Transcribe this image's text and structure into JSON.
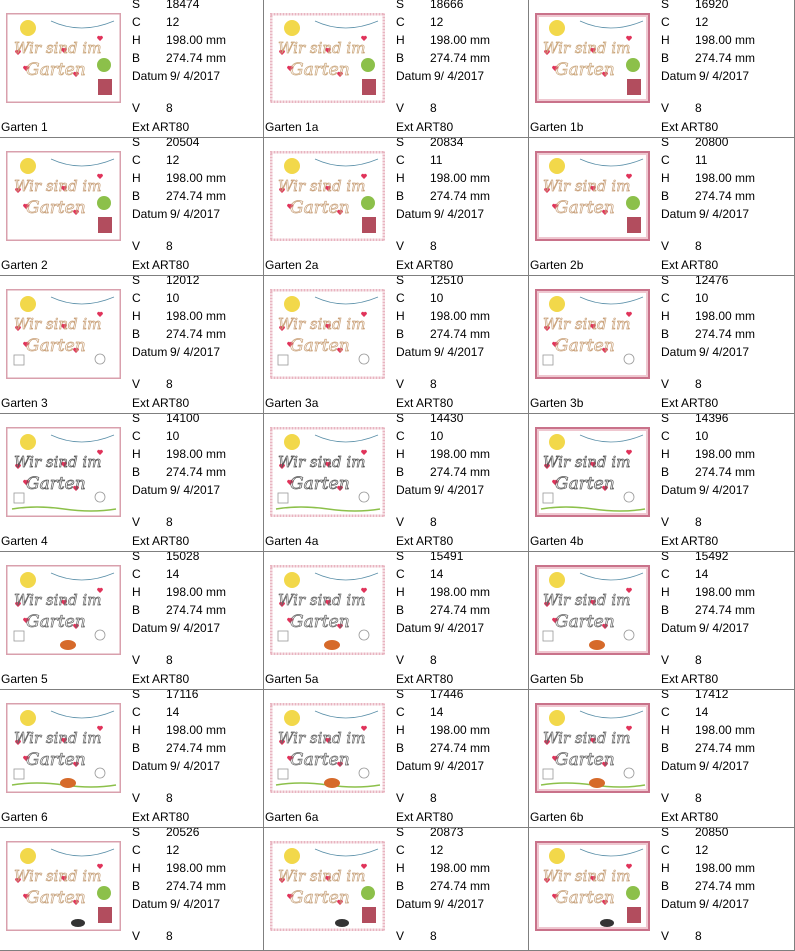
{
  "labels": {
    "s": "S",
    "c": "C",
    "h": "H",
    "b": "B",
    "datum": "Datum",
    "v": "V",
    "ext": "Ext"
  },
  "designs": [
    {
      "name": "Garten 1",
      "s": "18474",
      "c": "12",
      "h": "198.00 mm",
      "b": "274.74 mm",
      "date": "9/ 4/2017",
      "v": "8",
      "ext": "ART80",
      "variant": 1
    },
    {
      "name": "Garten 1a",
      "s": "18666",
      "c": "12",
      "h": "198.00 mm",
      "b": "274.74 mm",
      "date": "9/ 4/2017",
      "v": "8",
      "ext": "ART80",
      "variant": 1
    },
    {
      "name": "Garten 1b",
      "s": "16920",
      "c": "12",
      "h": "198.00 mm",
      "b": "274.74 mm",
      "date": "9/ 4/2017",
      "v": "8",
      "ext": "ART80",
      "variant": 1
    },
    {
      "name": "Garten 2",
      "s": "20504",
      "c": "12",
      "h": "198.00 mm",
      "b": "274.74 mm",
      "date": "9/ 4/2017",
      "v": "8",
      "ext": "ART80",
      "variant": 2
    },
    {
      "name": "Garten 2a",
      "s": "20834",
      "c": "11",
      "h": "198.00 mm",
      "b": "274.74 mm",
      "date": "9/ 4/2017",
      "v": "8",
      "ext": "ART80",
      "variant": 2
    },
    {
      "name": "Garten 2b",
      "s": "20800",
      "c": "11",
      "h": "198.00 mm",
      "b": "274.74 mm",
      "date": "9/ 4/2017",
      "v": "8",
      "ext": "ART80",
      "variant": 2
    },
    {
      "name": "Garten 3",
      "s": "12012",
      "c": "10",
      "h": "198.00 mm",
      "b": "274.74 mm",
      "date": "9/ 4/2017",
      "v": "8",
      "ext": "ART80",
      "variant": 3
    },
    {
      "name": "Garten 3a",
      "s": "12510",
      "c": "10",
      "h": "198.00 mm",
      "b": "274.74 mm",
      "date": "9/ 4/2017",
      "v": "8",
      "ext": "ART80",
      "variant": 3
    },
    {
      "name": "Garten 3b",
      "s": "12476",
      "c": "10",
      "h": "198.00 mm",
      "b": "274.74 mm",
      "date": "9/ 4/2017",
      "v": "8",
      "ext": "ART80",
      "variant": 3
    },
    {
      "name": "Garten 4",
      "s": "14100",
      "c": "10",
      "h": "198.00 mm",
      "b": "274.74 mm",
      "date": "9/ 4/2017",
      "v": "8",
      "ext": "ART80",
      "variant": 4
    },
    {
      "name": "Garten 4a",
      "s": "14430",
      "c": "10",
      "h": "198.00 mm",
      "b": "274.74 mm",
      "date": "9/ 4/2017",
      "v": "8",
      "ext": "ART80",
      "variant": 4
    },
    {
      "name": "Garten 4b",
      "s": "14396",
      "c": "10",
      "h": "198.00 mm",
      "b": "274.74 mm",
      "date": "9/ 4/2017",
      "v": "8",
      "ext": "ART80",
      "variant": 4
    },
    {
      "name": "Garten 5",
      "s": "15028",
      "c": "14",
      "h": "198.00 mm",
      "b": "274.74 mm",
      "date": "9/ 4/2017",
      "v": "8",
      "ext": "ART80",
      "variant": 5
    },
    {
      "name": "Garten 5a",
      "s": "15491",
      "c": "14",
      "h": "198.00 mm",
      "b": "274.74 mm",
      "date": "9/ 4/2017",
      "v": "8",
      "ext": "ART80",
      "variant": 5
    },
    {
      "name": "Garten 5b",
      "s": "15492",
      "c": "14",
      "h": "198.00 mm",
      "b": "274.74 mm",
      "date": "9/ 4/2017",
      "v": "8",
      "ext": "ART80",
      "variant": 5
    },
    {
      "name": "Garten 6",
      "s": "17116",
      "c": "14",
      "h": "198.00 mm",
      "b": "274.74 mm",
      "date": "9/ 4/2017",
      "v": "8",
      "ext": "ART80",
      "variant": 6
    },
    {
      "name": "Garten 6a",
      "s": "17446",
      "c": "14",
      "h": "198.00 mm",
      "b": "274.74 mm",
      "date": "9/ 4/2017",
      "v": "8",
      "ext": "ART80",
      "variant": 6
    },
    {
      "name": "Garten 6b",
      "s": "17412",
      "c": "14",
      "h": "198.00 mm",
      "b": "274.74 mm",
      "date": "9/ 4/2017",
      "v": "8",
      "ext": "ART80",
      "variant": 6
    },
    {
      "name": "",
      "s": "20526",
      "c": "12",
      "h": "198.00 mm",
      "b": "274.74 mm",
      "date": "9/ 4/2017",
      "v": "8",
      "ext": "",
      "variant": 7
    },
    {
      "name": "",
      "s": "20873",
      "c": "12",
      "h": "198.00 mm",
      "b": "274.74 mm",
      "date": "9/ 4/2017",
      "v": "8",
      "ext": "",
      "variant": 7
    },
    {
      "name": "",
      "s": "20850",
      "c": "12",
      "h": "198.00 mm",
      "b": "274.74 mm",
      "date": "9/ 4/2017",
      "v": "8",
      "ext": "",
      "variant": 7
    }
  ],
  "thumbnail": {
    "frame_colors": [
      "#d9a0ad",
      "#e8b4c0",
      "#c9728a"
    ],
    "text_colors": [
      "#caa57a",
      "#c8a07a",
      "#c9a078",
      "#555555",
      "#666666",
      "#666666",
      "#c7a27c"
    ],
    "heart_color": "#e0335a",
    "sun_color": "#f2d84a",
    "green_color": "#8cc04a",
    "line_text": [
      "Wir sind im",
      "Garten"
    ]
  }
}
